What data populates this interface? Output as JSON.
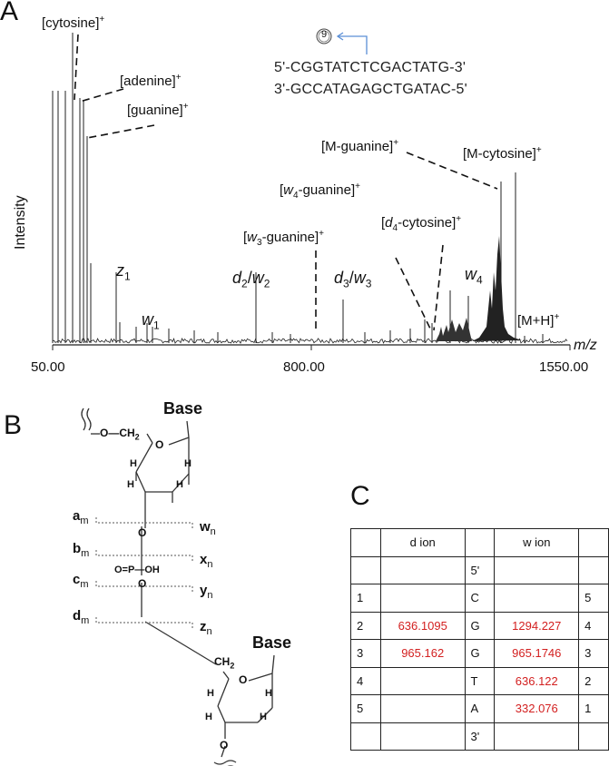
{
  "panels": {
    "a": "A",
    "b": "B",
    "c": "C"
  },
  "spectrum": {
    "ylabel": "Intensity",
    "xlabel": "m/z",
    "ticks": [
      "50.00",
      "800.00",
      "1550.00"
    ],
    "annotations": {
      "cytosine": "[cytosine]",
      "adenine": "[adenine]",
      "guanine": "[guanine]",
      "m_guanine": "[M-guanine]",
      "m_cytosine": "[M-cytosine]",
      "w4_guanine_pre": "[",
      "w4_guanine_ion": "w",
      "w4_guanine_sub": "4",
      "w4_guanine_post": "-guanine]",
      "w3_guanine_pre": "[",
      "w3_guanine_ion": "w",
      "w3_guanine_sub": "3",
      "w3_guanine_post": "-guanine]",
      "d4_cytosine_pre": "[",
      "d4_cytosine_ion": "d",
      "d4_cytosine_sub": "4",
      "d4_cytosine_post": "-cytosine]",
      "plus": "+",
      "z1_ion": "z",
      "z1_sub": "1",
      "w1_ion": "w",
      "w1_sub": "1",
      "d2w2_a": "d",
      "d2w2_a_sub": "2",
      "d2w2_sep": "/",
      "d2w2_b": "w",
      "d2w2_b_sub": "2",
      "d3w3_a": "d",
      "d3w3_a_sub": "3",
      "d3w3_sep": "/",
      "d3w3_b": "w",
      "d3w3_b_sub": "3",
      "w4_ion": "w",
      "w4_sub": "4",
      "mh": "[M+H]"
    },
    "sequence": {
      "marker": "9",
      "top": "5'-CGGTATCTCGACTATG-3'",
      "bottom": "3'-GCCATAGAGCTGATAC-5'"
    }
  },
  "structure": {
    "base_top": "Base",
    "base_bottom": "Base",
    "o_ch2": "O—CH",
    "ch2_sub": "2",
    "ring_o": "O",
    "h": "H",
    "o": "O",
    "p": "O=P—OH",
    "ch2_lower": "CH",
    "ch2_lower_sub": "2",
    "left_labels": [
      {
        "main": "a",
        "sub": "m"
      },
      {
        "main": "b",
        "sub": "m"
      },
      {
        "main": "c",
        "sub": "m"
      },
      {
        "main": "d",
        "sub": "m"
      }
    ],
    "right_labels": [
      {
        "main": "w",
        "sub": "n"
      },
      {
        "main": "x",
        "sub": "n"
      },
      {
        "main": "y",
        "sub": "n"
      },
      {
        "main": "z",
        "sub": "n"
      }
    ]
  },
  "ion_table": {
    "header": {
      "d": "d ion",
      "w": "w ion"
    },
    "rows": [
      {
        "i": "",
        "d": "",
        "nt": "5'",
        "w": "",
        "j": ""
      },
      {
        "i": "1",
        "d": "",
        "nt": "C",
        "w": "",
        "j": "5"
      },
      {
        "i": "2",
        "d": "636.1095",
        "nt": "G",
        "w": "1294.227",
        "j": "4"
      },
      {
        "i": "3",
        "d": "965.162",
        "nt": "G",
        "w": "965.1746",
        "j": "3"
      },
      {
        "i": "4",
        "d": "",
        "nt": "T",
        "w": "636.122",
        "j": "2"
      },
      {
        "i": "5",
        "d": "",
        "nt": "A",
        "w": "332.076",
        "j": "1"
      },
      {
        "i": "",
        "d": "",
        "nt": "3'",
        "w": "",
        "j": ""
      }
    ]
  },
  "colors": {
    "value_red": "#d32020",
    "marker_blue": "#5b8fd6"
  }
}
